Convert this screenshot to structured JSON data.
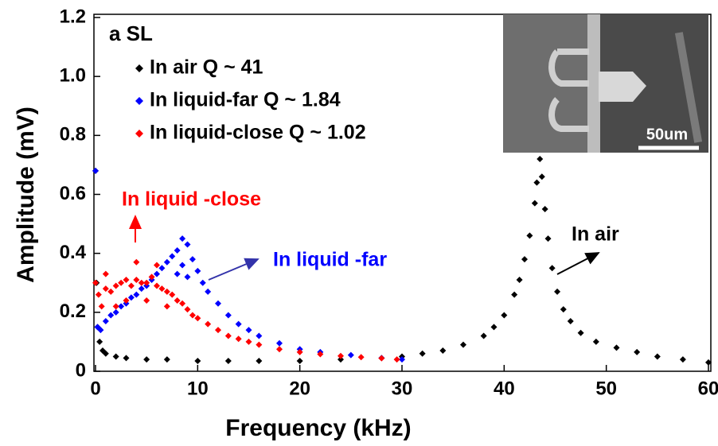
{
  "chart_data": {
    "type": "scatter",
    "panel_label": "a  SL",
    "x_label": "Frequency (kHz)",
    "y_label": "Amplitude (mV)",
    "xlim": [
      0,
      60
    ],
    "ylim": [
      0,
      1.2
    ],
    "xticks": [
      0,
      10,
      20,
      30,
      40,
      50,
      60
    ],
    "yticks": [
      0,
      0.2,
      0.4,
      0.6,
      0.8,
      {
        "value": 1,
        "label": "1.0"
      },
      1.2
    ],
    "inset_label": "50um",
    "legend": "upper left",
    "series": [
      {
        "name": "In air Q ~ 41",
        "color": "#000000",
        "x": [
          0,
          0.1,
          0.2,
          0.4,
          0.7,
          1,
          2,
          3,
          5,
          7,
          10,
          13,
          16,
          20,
          24,
          28,
          30,
          32,
          34,
          36,
          38,
          39,
          40,
          41,
          41.5,
          42,
          42.5,
          43,
          43.2,
          43.5,
          43.7,
          44,
          44.3,
          44.7,
          45.2,
          45.8,
          46.5,
          47.5,
          49,
          51,
          53,
          55,
          57.5,
          60
        ],
        "values": [
          0.68,
          0.3,
          0.15,
          0.1,
          0.07,
          0.06,
          0.05,
          0.045,
          0.04,
          0.04,
          0.035,
          0.035,
          0.035,
          0.035,
          0.04,
          0.045,
          0.05,
          0.06,
          0.07,
          0.09,
          0.12,
          0.15,
          0.19,
          0.26,
          0.31,
          0.38,
          0.46,
          0.57,
          0.64,
          0.72,
          0.66,
          0.55,
          0.45,
          0.35,
          0.27,
          0.21,
          0.17,
          0.13,
          0.1,
          0.08,
          0.065,
          0.05,
          0.04,
          0.03
        ]
      },
      {
        "name": "In liquid-far Q ~ 1.84",
        "color": "#0000ff",
        "x": [
          0,
          0.2,
          0.5,
          1,
          1.5,
          2,
          2.5,
          3,
          3.5,
          4,
          4.5,
          5,
          5.5,
          6,
          6.5,
          7,
          7.5,
          8,
          8,
          8.5,
          8.5,
          9,
          9,
          9.5,
          10,
          10.5,
          11,
          12,
          13,
          14,
          15,
          16,
          18,
          20,
          22,
          25,
          28,
          30
        ],
        "values": [
          0.68,
          0.15,
          0.14,
          0.17,
          0.19,
          0.2,
          0.22,
          0.23,
          0.25,
          0.26,
          0.28,
          0.29,
          0.31,
          0.33,
          0.35,
          0.37,
          0.39,
          0.41,
          0.33,
          0.45,
          0.36,
          0.43,
          0.32,
          0.38,
          0.34,
          0.3,
          0.27,
          0.23,
          0.19,
          0.16,
          0.14,
          0.12,
          0.095,
          0.075,
          0.065,
          0.055,
          0.045,
          0.04
        ]
      },
      {
        "name": "In liquid-close Q ~ 1.02",
        "color": "#ff0000",
        "x": [
          0,
          0.3,
          0.6,
          1,
          1,
          1.5,
          2,
          2,
          2.5,
          3,
          3,
          3.5,
          4,
          4,
          4.5,
          5,
          5,
          5.5,
          6,
          6,
          6.5,
          7,
          7,
          7.5,
          8,
          8.5,
          9,
          9.5,
          10,
          11,
          12,
          13,
          14,
          15,
          16,
          18,
          20,
          22,
          24,
          26,
          28,
          29.5
        ],
        "values": [
          0.3,
          0.26,
          0.22,
          0.28,
          0.33,
          0.27,
          0.29,
          0.22,
          0.3,
          0.31,
          0.24,
          0.29,
          0.31,
          0.37,
          0.3,
          0.3,
          0.24,
          0.32,
          0.29,
          0.36,
          0.28,
          0.27,
          0.22,
          0.26,
          0.24,
          0.23,
          0.21,
          0.19,
          0.18,
          0.16,
          0.14,
          0.12,
          0.11,
          0.1,
          0.09,
          0.075,
          0.065,
          0.058,
          0.052,
          0.048,
          0.044,
          0.04
        ]
      }
    ],
    "annotations": [
      {
        "text": "In liquid -close",
        "color": "#ff0000"
      },
      {
        "text": "In liquid -far",
        "color": "#0000ff"
      },
      {
        "text": "In air",
        "color": "#000000"
      }
    ]
  }
}
